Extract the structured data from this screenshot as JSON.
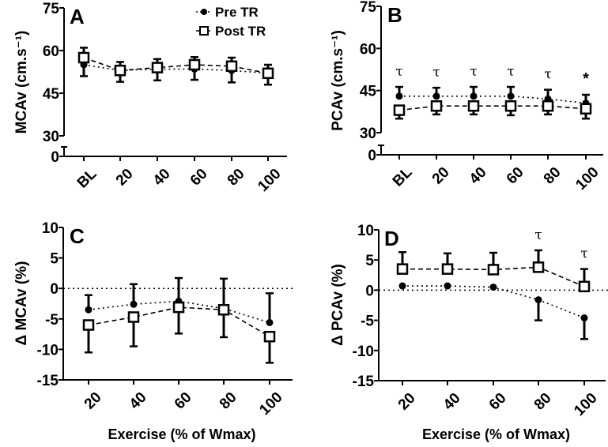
{
  "chart_data": [
    {
      "id": "A",
      "type": "line",
      "panel_label": "A",
      "ylabel": "MCAv (cm.s⁻¹)",
      "xlabel": "",
      "categories": [
        "BL",
        "20",
        "40",
        "60",
        "80",
        "100"
      ],
      "yticks": [
        "0",
        "30",
        "45",
        "60",
        "75"
      ],
      "ylim": [
        30,
        75
      ],
      "axis_break": true,
      "legend": {
        "placement": "top-right",
        "entries": [
          "Pre TR",
          "Post TR"
        ]
      },
      "series": [
        {
          "name": "Pre TR",
          "marker": "filled-circle",
          "line": "dotted",
          "values": [
            55,
            53,
            53.5,
            53.5,
            53,
            52
          ],
          "error": [
            4,
            4,
            4,
            3.8,
            4.2,
            4
          ],
          "error_direction": "down"
        },
        {
          "name": "Post TR",
          "marker": "open-square",
          "line": "dashed",
          "values": [
            57.5,
            53,
            54,
            55,
            54.5,
            52
          ],
          "error": [
            3.5,
            3,
            3,
            2.7,
            3,
            3
          ],
          "error_direction": "up"
        }
      ],
      "annotations": []
    },
    {
      "id": "B",
      "type": "line",
      "panel_label": "B",
      "ylabel": "PCAv (cm.s⁻¹)",
      "xlabel": "",
      "categories": [
        "BL",
        "20",
        "40",
        "60",
        "80",
        "100"
      ],
      "yticks": [
        "0",
        "30",
        "45",
        "60",
        "75"
      ],
      "ylim": [
        30,
        75
      ],
      "axis_break": true,
      "series": [
        {
          "name": "Pre TR",
          "marker": "filled-circle",
          "line": "dotted",
          "values": [
            43,
            43,
            43,
            43,
            42,
            40.5
          ],
          "error": [
            3.3,
            3,
            3.3,
            3.3,
            3.3,
            3
          ],
          "error_direction": "up"
        },
        {
          "name": "Post TR",
          "marker": "open-square",
          "line": "dashed",
          "values": [
            38,
            39.5,
            39.5,
            39.5,
            39.5,
            38.5
          ],
          "error": [
            3,
            3,
            3,
            3.3,
            3,
            3.5
          ],
          "error_direction": "down"
        }
      ],
      "annotations": [
        {
          "category": "BL",
          "text": "τ"
        },
        {
          "category": "20",
          "text": "τ"
        },
        {
          "category": "40",
          "text": "τ"
        },
        {
          "category": "60",
          "text": "τ"
        },
        {
          "category": "80",
          "text": "τ"
        },
        {
          "category": "100",
          "text": "*"
        }
      ]
    },
    {
      "id": "C",
      "type": "line",
      "panel_label": "C",
      "ylabel": "Δ MCAv (%)",
      "xlabel": "Exercise (% of Wmax)",
      "categories": [
        "20",
        "40",
        "60",
        "80",
        "100"
      ],
      "yticks": [
        "-15",
        "-10",
        "-5",
        "0",
        "5",
        "10"
      ],
      "ylim": [
        -15,
        10
      ],
      "axis_break": false,
      "reference_line": 0,
      "series": [
        {
          "name": "Pre TR",
          "marker": "filled-circle",
          "line": "dotted",
          "values": [
            -3.5,
            -2.6,
            -2.1,
            -3.3,
            -5.6
          ],
          "error": [
            2.4,
            3.3,
            3.8,
            4.9,
            4.8
          ],
          "error_direction": "up"
        },
        {
          "name": "Post TR",
          "marker": "open-square",
          "line": "dashed",
          "values": [
            -6,
            -4.7,
            -3.1,
            -3.5,
            -7.9
          ],
          "error": [
            4.5,
            4.8,
            4.3,
            4.5,
            4.3
          ],
          "error_direction": "down"
        }
      ],
      "annotations": []
    },
    {
      "id": "D",
      "type": "line",
      "panel_label": "D",
      "ylabel": "Δ PCAv (%)",
      "xlabel": "Exercise (% of Wmax)",
      "categories": [
        "20",
        "40",
        "60",
        "80",
        "100"
      ],
      "yticks": [
        "-15",
        "-10",
        "-5",
        "0",
        "5",
        "10"
      ],
      "ylim": [
        -15,
        10
      ],
      "axis_break": false,
      "reference_line": 0,
      "series": [
        {
          "name": "Pre TR",
          "marker": "filled-circle",
          "line": "dotted",
          "values": [
            0.7,
            0.7,
            0.5,
            -1.6,
            -4.6
          ],
          "error": [
            0,
            0,
            0,
            3.4,
            3.5
          ],
          "error_direction": "down"
        },
        {
          "name": "Post TR",
          "marker": "open-square",
          "line": "dashed",
          "values": [
            3.5,
            3.5,
            3.4,
            3.8,
            0.6
          ],
          "error": [
            2.8,
            2.6,
            2.8,
            2.8,
            2.9
          ],
          "error_direction": "up"
        }
      ],
      "annotations": [
        {
          "category": "80",
          "text": "τ"
        },
        {
          "category": "100",
          "text": "τ"
        }
      ]
    }
  ]
}
